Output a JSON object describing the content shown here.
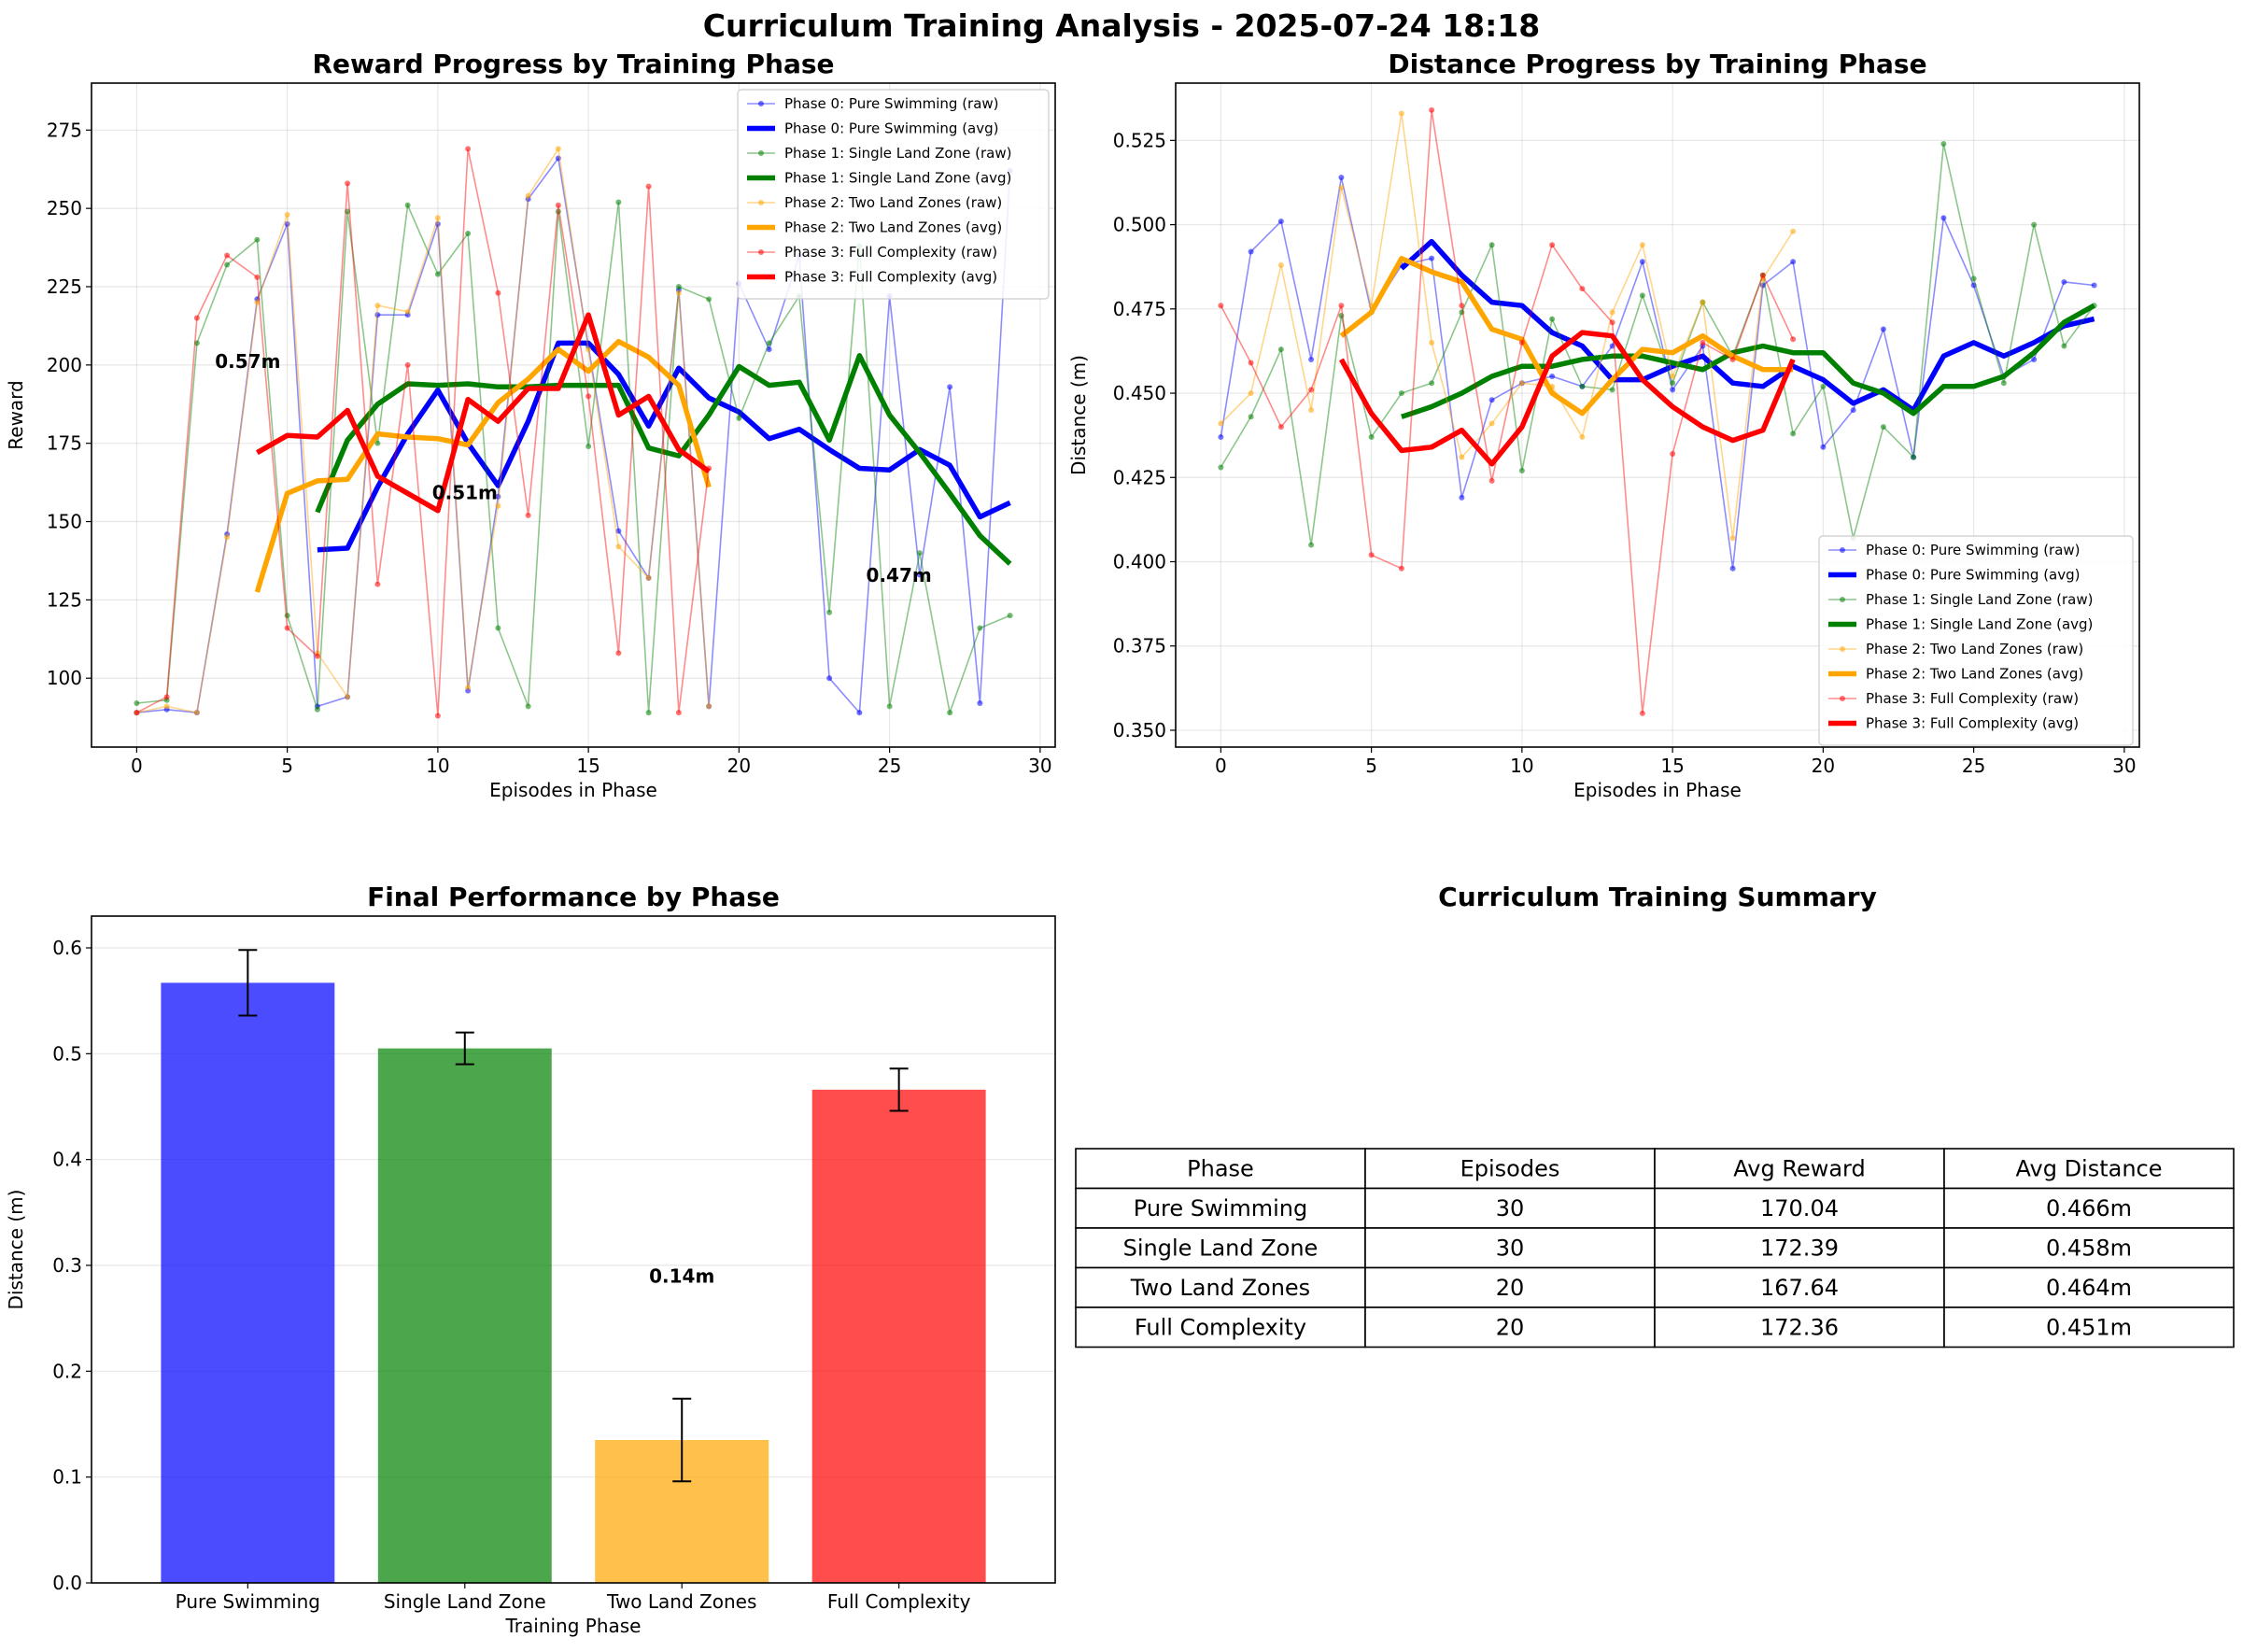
{
  "figure_title": "Curriculum Training Analysis - 2025-07-24 18:18",
  "colors": {
    "phase0": "#0000ff",
    "phase1": "#008000",
    "phase2": "#ffa500",
    "phase3": "#ff0000"
  },
  "chart_data": [
    {
      "type": "line",
      "title": "Reward Progress by Training Phase",
      "xlabel": "Episodes in Phase",
      "ylabel": "Reward",
      "xlim": [
        -1.5,
        30.5
      ],
      "ylim": [
        78,
        290
      ],
      "xticks": [
        0,
        5,
        10,
        15,
        20,
        25,
        30
      ],
      "yticks": [
        100,
        125,
        150,
        175,
        200,
        225,
        250,
        275
      ],
      "grid": true,
      "legend_position": "top-right",
      "series": [
        {
          "name": "Phase 0: Pure Swimming (raw)",
          "color": "#0000ff",
          "kind": "raw",
          "x": [
            0,
            1,
            2,
            3,
            4,
            5,
            6,
            7,
            8,
            9,
            10,
            11,
            12,
            13,
            14,
            15,
            16,
            17,
            18,
            19,
            20,
            21,
            22,
            23,
            24,
            25,
            26,
            27,
            28,
            29
          ],
          "y": [
            89,
            90,
            89,
            146,
            221,
            245,
            91,
            94,
            216,
            216,
            245,
            96,
            158,
            253,
            266,
            206,
            147,
            132,
            224,
            91,
            226,
            205,
            235,
            100,
            89,
            222,
            133,
            193,
            92,
            262
          ]
        },
        {
          "name": "Phase 0: Pure Swimming (avg)",
          "color": "#0000ff",
          "kind": "avg",
          "x": [
            6,
            7,
            8,
            9,
            10,
            11,
            12,
            13,
            14,
            15,
            16,
            17,
            18,
            19,
            20,
            21,
            22,
            23,
            24,
            25,
            26,
            27,
            28,
            29
          ],
          "y": [
            141,
            141.5,
            161,
            178,
            192,
            175,
            161.5,
            182,
            207,
            207,
            197,
            180.5,
            199,
            189.5,
            185,
            176.5,
            179.5,
            173,
            167,
            166.5,
            173,
            168,
            151.5,
            156
          ]
        },
        {
          "name": "Phase 1: Single Land Zone (raw)",
          "color": "#008000",
          "kind": "raw",
          "x": [
            0,
            1,
            2,
            3,
            4,
            5,
            6,
            7,
            8,
            9,
            10,
            11,
            12,
            13,
            14,
            15,
            16,
            17,
            18,
            19,
            20,
            21,
            22,
            23,
            24,
            25,
            26,
            27,
            28,
            29
          ],
          "y": [
            92,
            93,
            207,
            232,
            240,
            120,
            90,
            249,
            175,
            251,
            229,
            242,
            116,
            91,
            249,
            174,
            252,
            89,
            225,
            221,
            183,
            207,
            222,
            121,
            238,
            91,
            140,
            89,
            116,
            120
          ]
        },
        {
          "name": "Phase 1: Single Land Zone (avg)",
          "color": "#008000",
          "kind": "avg",
          "x": [
            6,
            7,
            8,
            9,
            10,
            11,
            12,
            13,
            14,
            15,
            16,
            17,
            18,
            19,
            20,
            21,
            22,
            23,
            24,
            25,
            26,
            27,
            28,
            29
          ],
          "y": [
            153,
            176,
            187.5,
            194,
            193.5,
            194,
            193,
            193,
            193.5,
            193.5,
            193.5,
            173.5,
            171,
            184,
            199.5,
            193.5,
            194.5,
            176,
            203,
            184,
            172,
            159,
            145.5,
            136.5
          ]
        },
        {
          "name": "Phase 2: Two Land Zones (raw)",
          "color": "#ffa500",
          "kind": "raw",
          "x": [
            0,
            1,
            2,
            3,
            4,
            5,
            6,
            7,
            8,
            9,
            10,
            11,
            12,
            13,
            14,
            15,
            16,
            17,
            18,
            19
          ],
          "y": [
            89,
            91,
            89,
            145,
            220,
            248,
            108,
            94,
            219,
            217,
            247,
            97,
            155,
            254,
            269,
            205,
            142,
            132,
            223,
            91
          ]
        },
        {
          "name": "Phase 2: Two Land Zones (avg)",
          "color": "#ffa500",
          "kind": "avg",
          "x": [
            4,
            5,
            6,
            7,
            8,
            9,
            10,
            11,
            12,
            13,
            14,
            15,
            16,
            17,
            18,
            19
          ],
          "y": [
            127.5,
            159,
            163,
            163.5,
            178,
            177,
            176.5,
            174.5,
            188,
            195.5,
            205,
            198,
            207.5,
            202.5,
            193.5,
            161
          ]
        },
        {
          "name": "Phase 3: Full Complexity (raw)",
          "color": "#ff0000",
          "kind": "raw",
          "x": [
            0,
            1,
            2,
            3,
            4,
            5,
            6,
            7,
            8,
            9,
            10,
            11,
            12,
            13,
            14,
            15,
            16,
            17,
            18,
            19
          ],
          "y": [
            89,
            94,
            215,
            235,
            228,
            116,
            107,
            258,
            130,
            200,
            88,
            269,
            223,
            152,
            251,
            190,
            108,
            257,
            89,
            167
          ]
        },
        {
          "name": "Phase 3: Full Complexity (avg)",
          "color": "#ff0000",
          "kind": "avg",
          "x": [
            4,
            5,
            6,
            7,
            8,
            9,
            10,
            11,
            12,
            13,
            14,
            15,
            16,
            17,
            18,
            19
          ],
          "y": [
            172,
            177.5,
            177,
            185.5,
            164.5,
            159,
            153.5,
            189,
            182,
            192.5,
            192.5,
            216,
            184,
            190,
            173,
            166
          ]
        }
      ]
    },
    {
      "type": "line",
      "title": "Distance Progress by Training Phase",
      "xlabel": "Episodes in Phase",
      "ylabel": "Distance (m)",
      "xlim": [
        -1.5,
        30.5
      ],
      "ylim": [
        0.345,
        0.542
      ],
      "xticks": [
        0,
        5,
        10,
        15,
        20,
        25,
        30
      ],
      "yticks": [
        0.35,
        0.375,
        0.4,
        0.425,
        0.45,
        0.475,
        0.5,
        0.525
      ],
      "grid": true,
      "legend_position": "bottom-right",
      "series": [
        {
          "name": "Phase 0: Pure Swimming (raw)",
          "color": "#0000ff",
          "kind": "raw",
          "x": [
            0,
            1,
            2,
            3,
            4,
            5,
            6,
            7,
            8,
            9,
            10,
            11,
            12,
            13,
            14,
            15,
            16,
            17,
            18,
            19,
            20,
            21,
            22,
            23,
            24,
            25,
            26,
            27,
            28,
            29
          ],
          "y": [
            0.437,
            0.492,
            0.501,
            0.46,
            0.514,
            0.474,
            0.488,
            0.49,
            0.419,
            0.448,
            0.453,
            0.455,
            0.452,
            0.464,
            0.489,
            0.451,
            0.464,
            0.398,
            0.482,
            0.489,
            0.434,
            0.445,
            0.469,
            0.431,
            0.502,
            0.482,
            0.455,
            0.46,
            0.483,
            0.482
          ]
        },
        {
          "name": "Phase 0: Pure Swimming (avg)",
          "color": "#0000ff",
          "kind": "avg",
          "x": [
            6,
            7,
            8,
            9,
            10,
            11,
            12,
            13,
            14,
            15,
            16,
            17,
            18,
            19,
            20,
            21,
            22,
            23,
            24,
            25,
            26,
            27,
            28,
            29
          ],
          "y": [
            0.487,
            0.495,
            0.485,
            0.477,
            0.476,
            0.468,
            0.464,
            0.454,
            0.454,
            0.458,
            0.461,
            0.453,
            0.452,
            0.458,
            0.454,
            0.447,
            0.451,
            0.445,
            0.461,
            0.465,
            0.461,
            0.465,
            0.47,
            0.472
          ]
        },
        {
          "name": "Phase 1: Single Land Zone (raw)",
          "color": "#008000",
          "kind": "raw",
          "x": [
            0,
            1,
            2,
            3,
            4,
            5,
            6,
            7,
            8,
            9,
            10,
            11,
            12,
            13,
            14,
            15,
            16,
            17,
            18,
            19,
            20,
            21,
            22,
            23,
            24,
            25,
            26,
            27,
            28,
            29
          ],
          "y": [
            0.428,
            0.443,
            0.463,
            0.405,
            0.473,
            0.437,
            0.45,
            0.453,
            0.474,
            0.494,
            0.427,
            0.472,
            0.452,
            0.451,
            0.479,
            0.453,
            0.477,
            0.461,
            0.485,
            0.438,
            0.452,
            0.407,
            0.44,
            0.431,
            0.524,
            0.484,
            0.453,
            0.5,
            0.464,
            0.476
          ]
        },
        {
          "name": "Phase 1: Single Land Zone (avg)",
          "color": "#008000",
          "kind": "avg",
          "x": [
            6,
            7,
            8,
            9,
            10,
            11,
            12,
            13,
            14,
            15,
            16,
            17,
            18,
            19,
            20,
            21,
            22,
            23,
            24,
            25,
            26,
            27,
            28,
            29
          ],
          "y": [
            0.443,
            0.446,
            0.45,
            0.455,
            0.458,
            0.458,
            0.46,
            0.461,
            0.461,
            0.459,
            0.457,
            0.462,
            0.464,
            0.462,
            0.462,
            0.453,
            0.45,
            0.444,
            0.452,
            0.452,
            0.455,
            0.462,
            0.471,
            0.476
          ]
        },
        {
          "name": "Phase 2: Two Land Zones (raw)",
          "color": "#ffa500",
          "kind": "raw",
          "x": [
            0,
            1,
            2,
            3,
            4,
            5,
            6,
            7,
            8,
            9,
            10,
            11,
            12,
            13,
            14,
            15,
            16,
            17,
            18,
            19
          ],
          "y": [
            0.441,
            0.45,
            0.488,
            0.445,
            0.511,
            0.476,
            0.533,
            0.465,
            0.431,
            0.441,
            0.453,
            0.452,
            0.437,
            0.474,
            0.494,
            0.455,
            0.477,
            0.407,
            0.484,
            0.498
          ]
        },
        {
          "name": "Phase 2: Two Land Zones (avg)",
          "color": "#ffa500",
          "kind": "avg",
          "x": [
            4,
            5,
            6,
            7,
            8,
            9,
            10,
            11,
            12,
            13,
            14,
            15,
            16,
            17,
            18,
            19
          ],
          "y": [
            0.467,
            0.474,
            0.49,
            0.486,
            0.483,
            0.469,
            0.466,
            0.45,
            0.444,
            0.454,
            0.463,
            0.462,
            0.467,
            0.461,
            0.457,
            0.457
          ]
        },
        {
          "name": "Phase 3: Full Complexity (raw)",
          "color": "#ff0000",
          "kind": "raw",
          "x": [
            0,
            1,
            2,
            3,
            4,
            5,
            6,
            7,
            8,
            9,
            10,
            11,
            12,
            13,
            14,
            15,
            16,
            17,
            18,
            19
          ],
          "y": [
            0.476,
            0.459,
            0.44,
            0.451,
            0.476,
            0.402,
            0.398,
            0.534,
            0.476,
            0.424,
            0.465,
            0.494,
            0.481,
            0.471,
            0.355,
            0.432,
            0.465,
            0.46,
            0.485,
            0.466
          ]
        },
        {
          "name": "Phase 3: Full Complexity (avg)",
          "color": "#ff0000",
          "kind": "avg",
          "x": [
            4,
            5,
            6,
            7,
            8,
            9,
            10,
            11,
            12,
            13,
            14,
            15,
            16,
            17,
            18,
            19
          ],
          "y": [
            0.46,
            0.444,
            0.433,
            0.434,
            0.439,
            0.429,
            0.44,
            0.461,
            0.468,
            0.467,
            0.454,
            0.446,
            0.44,
            0.436,
            0.439,
            0.46
          ]
        }
      ]
    },
    {
      "type": "bar",
      "title": "Final Performance by Phase",
      "xlabel": "Training Phase",
      "ylabel": "Distance (m)",
      "ylim": [
        0,
        0.63
      ],
      "yticks": [
        0.0,
        0.1,
        0.2,
        0.3,
        0.4,
        0.5,
        0.6
      ],
      "grid": true,
      "categories": [
        "Pure Swimming",
        "Single Land Zone",
        "Two Land Zones",
        "Full Complexity"
      ],
      "values": [
        0.567,
        0.505,
        0.135,
        0.466
      ],
      "errors": [
        0.031,
        0.015,
        0.039,
        0.02
      ],
      "colors": [
        "#0000ff",
        "#008000",
        "#ffa500",
        "#ff0000"
      ],
      "bar_labels": [
        "0.57m",
        "0.51m",
        "0.14m",
        "0.47m"
      ]
    },
    {
      "type": "table",
      "title": "Curriculum Training Summary",
      "columns": [
        "Phase",
        "Episodes",
        "Avg Reward",
        "Avg Distance"
      ],
      "rows": [
        [
          "Pure Swimming",
          "30",
          "170.04",
          "0.466m"
        ],
        [
          "Single Land Zone",
          "30",
          "172.39",
          "0.458m"
        ],
        [
          "Two Land Zones",
          "20",
          "167.64",
          "0.464m"
        ],
        [
          "Full Complexity",
          "20",
          "172.36",
          "0.451m"
        ]
      ]
    }
  ]
}
